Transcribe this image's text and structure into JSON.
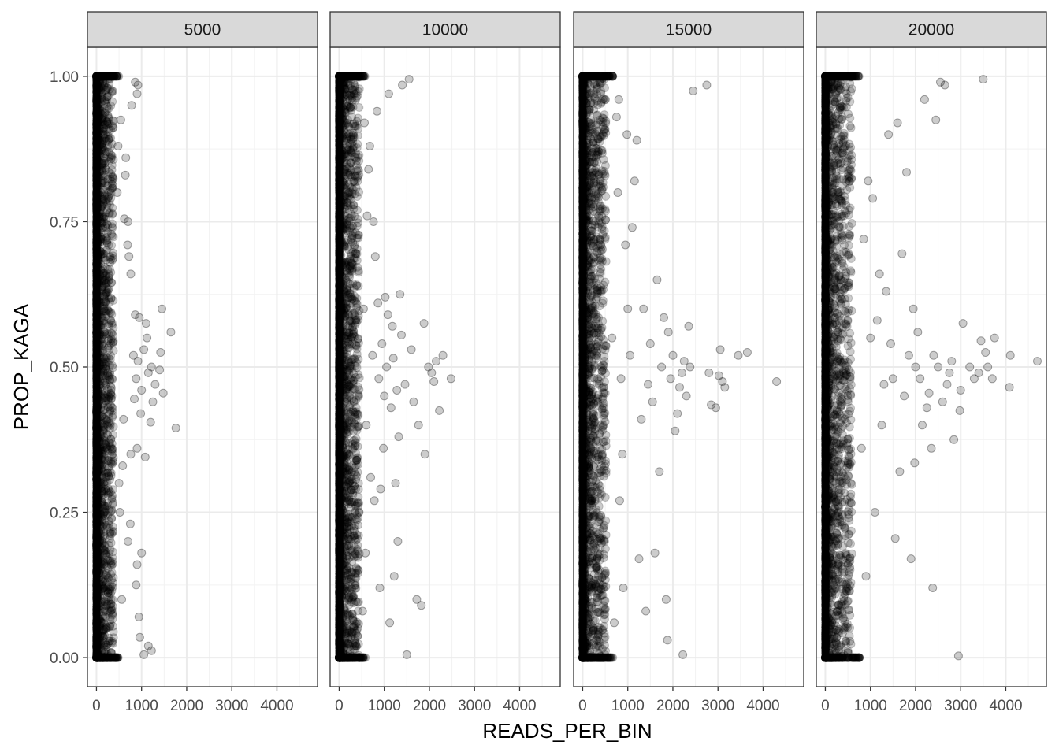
{
  "chart_data": {
    "type": "scatter",
    "xlabel": "READS_PER_BIN",
    "ylabel": "PROP_KAGA",
    "xlim": [
      -200,
      4900
    ],
    "ylim": [
      -0.05,
      1.05
    ],
    "x_ticks": [
      0,
      1000,
      2000,
      3000,
      4000
    ],
    "x_tick_labels": [
      "0",
      "1000",
      "2000",
      "3000",
      "4000"
    ],
    "y_ticks": [
      0,
      0.25,
      0.5,
      0.75,
      1
    ],
    "y_tick_labels": [
      "0.00",
      "0.25",
      "0.50",
      "0.75",
      "1.00"
    ],
    "grid": true,
    "point_color": "#000000",
    "point_alpha": 0.2,
    "facet_strip_color": "#d9d9d9",
    "panels": [
      {
        "label": "5000",
        "points": [
          [
            1760,
            0.395
          ],
          [
            1650,
            0.56
          ],
          [
            1480,
            0.455
          ],
          [
            1450,
            0.6
          ],
          [
            1420,
            0.525
          ],
          [
            1400,
            0.495
          ],
          [
            1300,
            0.47
          ],
          [
            1250,
            0.44
          ],
          [
            1220,
            0.5
          ],
          [
            1200,
            0.405
          ],
          [
            1150,
            0.49
          ],
          [
            1120,
            0.55
          ],
          [
            1080,
            0.345
          ],
          [
            1100,
            0.575
          ],
          [
            1050,
            0.53
          ],
          [
            1000,
            0.46
          ],
          [
            980,
            0.42
          ],
          [
            950,
            0.585
          ],
          [
            920,
            0.51
          ],
          [
            900,
            0.36
          ],
          [
            880,
            0.48
          ],
          [
            860,
            0.59
          ],
          [
            840,
            0.445
          ],
          [
            820,
            0.52
          ],
          [
            1000,
            0.18
          ],
          [
            900,
            0.16
          ],
          [
            880,
            0.125
          ],
          [
            940,
            0.07
          ],
          [
            960,
            0.035
          ],
          [
            1220,
            0.012
          ],
          [
            1150,
            0.02
          ],
          [
            1050,
            0.005
          ],
          [
            920,
            0.985
          ],
          [
            900,
            0.97
          ],
          [
            860,
            0.99
          ],
          [
            780,
            0.95
          ],
          [
            760,
            0.66
          ],
          [
            720,
            0.69
          ],
          [
            700,
            0.75
          ],
          [
            690,
            0.71
          ],
          [
            750,
            0.23
          ],
          [
            700,
            0.2
          ],
          [
            650,
            0.86
          ],
          [
            640,
            0.83
          ],
          [
            620,
            0.755
          ],
          [
            600,
            0.41
          ],
          [
            580,
            0.33
          ],
          [
            560,
            0.1
          ],
          [
            540,
            0.925
          ],
          [
            520,
            0.25
          ],
          [
            500,
            0.3
          ],
          [
            480,
            0.88
          ],
          [
            460,
            0.8
          ],
          [
            760,
            0.35
          ]
        ]
      },
      {
        "label": "10000",
        "points": [
          [
            2480,
            0.48
          ],
          [
            2300,
            0.52
          ],
          [
            2220,
            0.425
          ],
          [
            2150,
            0.51
          ],
          [
            2100,
            0.475
          ],
          [
            2050,
            0.49
          ],
          [
            1980,
            0.5
          ],
          [
            1900,
            0.35
          ],
          [
            1880,
            0.575
          ],
          [
            1820,
            0.09
          ],
          [
            1760,
            0.4
          ],
          [
            1720,
            0.1
          ],
          [
            1650,
            0.44
          ],
          [
            1600,
            0.53
          ],
          [
            1550,
            0.995
          ],
          [
            1500,
            0.005
          ],
          [
            1460,
            0.47
          ],
          [
            1400,
            0.985
          ],
          [
            1380,
            0.555
          ],
          [
            1350,
            0.625
          ],
          [
            1320,
            0.38
          ],
          [
            1300,
            0.2
          ],
          [
            1280,
            0.46
          ],
          [
            1250,
            0.3
          ],
          [
            1220,
            0.14
          ],
          [
            1200,
            0.515
          ],
          [
            1180,
            0.57
          ],
          [
            1150,
            0.43
          ],
          [
            1120,
            0.06
          ],
          [
            1100,
            0.97
          ],
          [
            1080,
            0.59
          ],
          [
            1050,
            0.5
          ],
          [
            1020,
            0.62
          ],
          [
            1000,
            0.45
          ],
          [
            980,
            0.36
          ],
          [
            950,
            0.54
          ],
          [
            920,
            0.29
          ],
          [
            900,
            0.12
          ],
          [
            880,
            0.48
          ],
          [
            860,
            0.61
          ],
          [
            840,
            0.94
          ],
          [
            800,
            0.69
          ],
          [
            780,
            0.27
          ],
          [
            760,
            0.75
          ],
          [
            740,
            0.52
          ],
          [
            700,
            0.31
          ],
          [
            680,
            0.88
          ],
          [
            650,
            0.84
          ],
          [
            620,
            0.76
          ],
          [
            600,
            0.4
          ],
          [
            580,
            0.18
          ],
          [
            560,
            0.92
          ],
          [
            540,
            0.6
          ],
          [
            520,
            0.08
          ]
        ]
      },
      {
        "label": "15000",
        "points": [
          [
            4300,
            0.475
          ],
          [
            3650,
            0.525
          ],
          [
            3450,
            0.52
          ],
          [
            3150,
            0.465
          ],
          [
            3100,
            0.475
          ],
          [
            3050,
            0.53
          ],
          [
            3020,
            0.485
          ],
          [
            2950,
            0.43
          ],
          [
            2850,
            0.435
          ],
          [
            2800,
            0.49
          ],
          [
            2750,
            0.985
          ],
          [
            2450,
            0.975
          ],
          [
            2380,
            0.5
          ],
          [
            2350,
            0.57
          ],
          [
            2300,
            0.45
          ],
          [
            2250,
            0.51
          ],
          [
            2220,
            0.005
          ],
          [
            2200,
            0.49
          ],
          [
            2150,
            0.465
          ],
          [
            2100,
            0.42
          ],
          [
            2050,
            0.39
          ],
          [
            2000,
            0.52
          ],
          [
            1950,
            0.48
          ],
          [
            1900,
            0.56
          ],
          [
            1880,
            0.03
          ],
          [
            1850,
            0.1
          ],
          [
            1800,
            0.585
          ],
          [
            1750,
            0.5
          ],
          [
            1700,
            0.32
          ],
          [
            1650,
            0.65
          ],
          [
            1600,
            0.18
          ],
          [
            1550,
            0.44
          ],
          [
            1500,
            0.54
          ],
          [
            1450,
            0.47
          ],
          [
            1400,
            0.08
          ],
          [
            1350,
            0.6
          ],
          [
            1300,
            0.41
          ],
          [
            1250,
            0.17
          ],
          [
            1200,
            0.89
          ],
          [
            1150,
            0.82
          ],
          [
            1100,
            0.74
          ],
          [
            1050,
            0.52
          ],
          [
            1000,
            0.6
          ],
          [
            980,
            0.9
          ],
          [
            950,
            0.71
          ],
          [
            900,
            0.12
          ],
          [
            880,
            0.35
          ],
          [
            850,
            0.48
          ],
          [
            820,
            0.27
          ],
          [
            800,
            0.96
          ],
          [
            780,
            0.8
          ],
          [
            750,
            0.93
          ],
          [
            700,
            0.06
          ],
          [
            650,
            0.55
          ]
        ]
      },
      {
        "label": "20000",
        "points": [
          [
            4700,
            0.51
          ],
          [
            4100,
            0.52
          ],
          [
            4080,
            0.465
          ],
          [
            3750,
            0.55
          ],
          [
            3700,
            0.48
          ],
          [
            3600,
            0.5
          ],
          [
            3550,
            0.525
          ],
          [
            3500,
            0.995
          ],
          [
            3450,
            0.545
          ],
          [
            3400,
            0.49
          ],
          [
            3300,
            0.48
          ],
          [
            3200,
            0.5
          ],
          [
            3050,
            0.575
          ],
          [
            3000,
            0.46
          ],
          [
            2980,
            0.425
          ],
          [
            2950,
            0.003
          ],
          [
            2850,
            0.375
          ],
          [
            2800,
            0.51
          ],
          [
            2750,
            0.49
          ],
          [
            2700,
            0.47
          ],
          [
            2650,
            0.985
          ],
          [
            2600,
            0.44
          ],
          [
            2550,
            0.99
          ],
          [
            2500,
            0.5
          ],
          [
            2450,
            0.925
          ],
          [
            2400,
            0.52
          ],
          [
            2380,
            0.12
          ],
          [
            2350,
            0.36
          ],
          [
            2300,
            0.455
          ],
          [
            2250,
            0.43
          ],
          [
            2200,
            0.96
          ],
          [
            2150,
            0.4
          ],
          [
            2100,
            0.48
          ],
          [
            2050,
            0.56
          ],
          [
            2000,
            0.5
          ],
          [
            1980,
            0.335
          ],
          [
            1950,
            0.6
          ],
          [
            1900,
            0.17
          ],
          [
            1850,
            0.52
          ],
          [
            1800,
            0.835
          ],
          [
            1750,
            0.45
          ],
          [
            1700,
            0.695
          ],
          [
            1650,
            0.32
          ],
          [
            1600,
            0.92
          ],
          [
            1550,
            0.205
          ],
          [
            1500,
            0.48
          ],
          [
            1450,
            0.54
          ],
          [
            1400,
            0.9
          ],
          [
            1350,
            0.63
          ],
          [
            1300,
            0.47
          ],
          [
            1250,
            0.4
          ],
          [
            1200,
            0.66
          ],
          [
            1150,
            0.58
          ],
          [
            1100,
            0.25
          ],
          [
            1050,
            0.79
          ],
          [
            1000,
            0.55
          ],
          [
            950,
            0.82
          ],
          [
            900,
            0.14
          ],
          [
            850,
            0.72
          ],
          [
            800,
            0.36
          ]
        ]
      }
    ]
  }
}
